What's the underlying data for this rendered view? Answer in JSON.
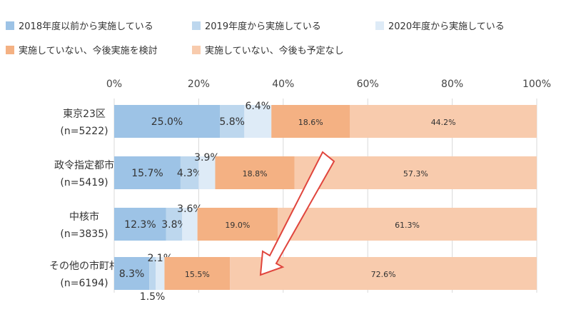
{
  "chart_data": {
    "type": "bar",
    "orientation": "horizontal-stacked-100",
    "xlim": [
      0,
      100
    ],
    "x_ticks": [
      "0%",
      "20%",
      "40%",
      "60%",
      "80%",
      "100%"
    ],
    "categories": [
      {
        "name": "東京23区",
        "n": "(n=5222)"
      },
      {
        "name": "政令指定都市",
        "n": "(n=5419)"
      },
      {
        "name": "中核市",
        "n": "(n=3835)"
      },
      {
        "name": "その他の市町村",
        "n": "(n=6194)"
      }
    ],
    "series": [
      {
        "name": "2018年度以前から実施している",
        "color": "#9dc3e6",
        "values": [
          25.0,
          15.7,
          12.3,
          8.3
        ],
        "labels": [
          "25.0%",
          "15.7%",
          "12.3%",
          "8.3%"
        ]
      },
      {
        "name": "2019年度から実施している",
        "color": "#bdd7ee",
        "values": [
          5.8,
          4.3,
          3.8,
          1.5
        ],
        "labels": [
          "5.8%",
          "4.3%",
          "3.8%",
          "1.5%"
        ]
      },
      {
        "name": "2020年度から実施している",
        "color": "#deebf7",
        "values": [
          6.4,
          3.9,
          3.6,
          2.1
        ],
        "labels": [
          "6.4%",
          "3.9%",
          "3.6%",
          "2.1%"
        ]
      },
      {
        "name": "実施していない、今後実施を検討",
        "color": "#f4b183",
        "values": [
          18.6,
          18.8,
          19.0,
          15.5
        ],
        "labels": [
          "18.6%",
          "18.8%",
          "19.0%",
          "15.5%"
        ]
      },
      {
        "name": "実施していない、今後も予定なし",
        "color": "#f8cbad",
        "values": [
          44.2,
          57.3,
          61.3,
          72.6
        ],
        "labels": [
          "44.2%",
          "57.3%",
          "61.3%",
          "72.6%"
        ]
      }
    ],
    "annotation": "arrow",
    "legend_position": "top",
    "grid": true
  }
}
